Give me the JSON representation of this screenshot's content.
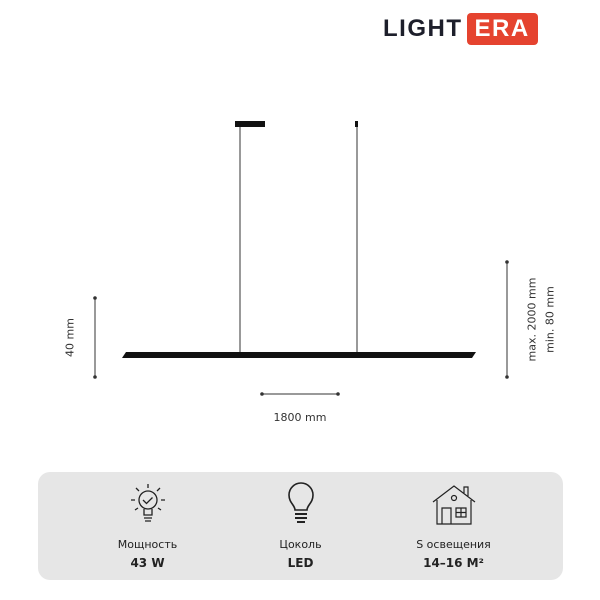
{
  "brand": {
    "part1": "LIGHT",
    "part2": "ERA",
    "accent": "#e5432f"
  },
  "dimensions": {
    "height": "40 mm",
    "length": "1800 mm",
    "max_hang": "max. 2000 mm",
    "min_hang": "min. 80 mm"
  },
  "specs": [
    {
      "icon": "bulb-check-icon",
      "label": "Мощность",
      "value": "43 W"
    },
    {
      "icon": "bulb-icon",
      "label": "Цоколь",
      "value": "LED"
    },
    {
      "icon": "house-icon",
      "label": "S освещения",
      "value": "14–16 М²"
    }
  ]
}
